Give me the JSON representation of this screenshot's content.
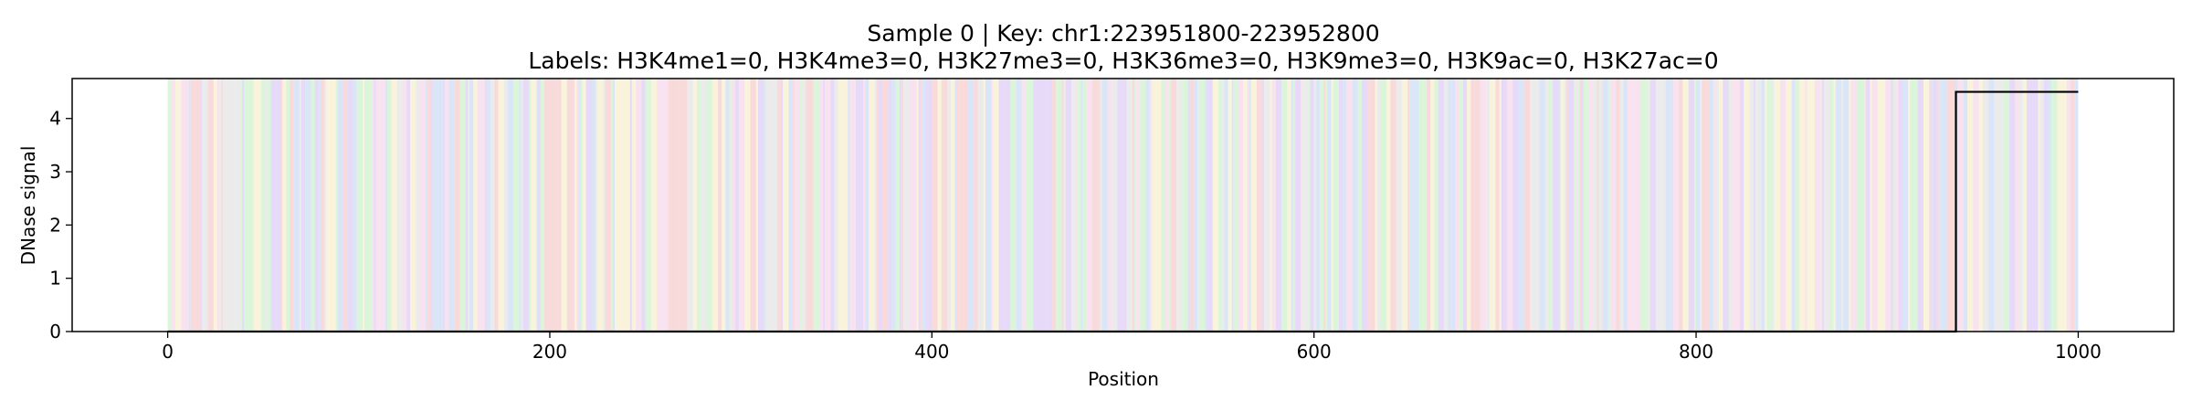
{
  "chart_data": {
    "type": "line",
    "title": "Sample 0 | Key: chr1:223951800-223952800",
    "subtitle": "Labels: H3K4me1=0, H3K4me3=0, H3K27me3=0, H3K36me3=0, H3K9me3=0, H3K9ac=0, H3K27ac=0",
    "xlabel": "Position",
    "ylabel": "DNase signal",
    "xlim": [
      -50,
      1050
    ],
    "ylim": [
      0,
      4.75
    ],
    "xticks": [
      0,
      200,
      400,
      600,
      800,
      1000
    ],
    "yticks": [
      0,
      1,
      2,
      3,
      4
    ],
    "grid": false,
    "background_band": {
      "x_range": [
        0,
        1000
      ],
      "colors": [
        "#f5c6c6",
        "#c6d8f5",
        "#c6f0c6",
        "#f5ecc6",
        "#d8c6f5",
        "#e0e0e0",
        "#f5d2e6"
      ]
    },
    "series": [
      {
        "color": "#000000",
        "x": [
          0,
          934,
          934,
          936,
          936,
          1000
        ],
        "y": [
          0,
          0,
          0,
          0,
          4.5,
          4.5
        ]
      }
    ]
  }
}
